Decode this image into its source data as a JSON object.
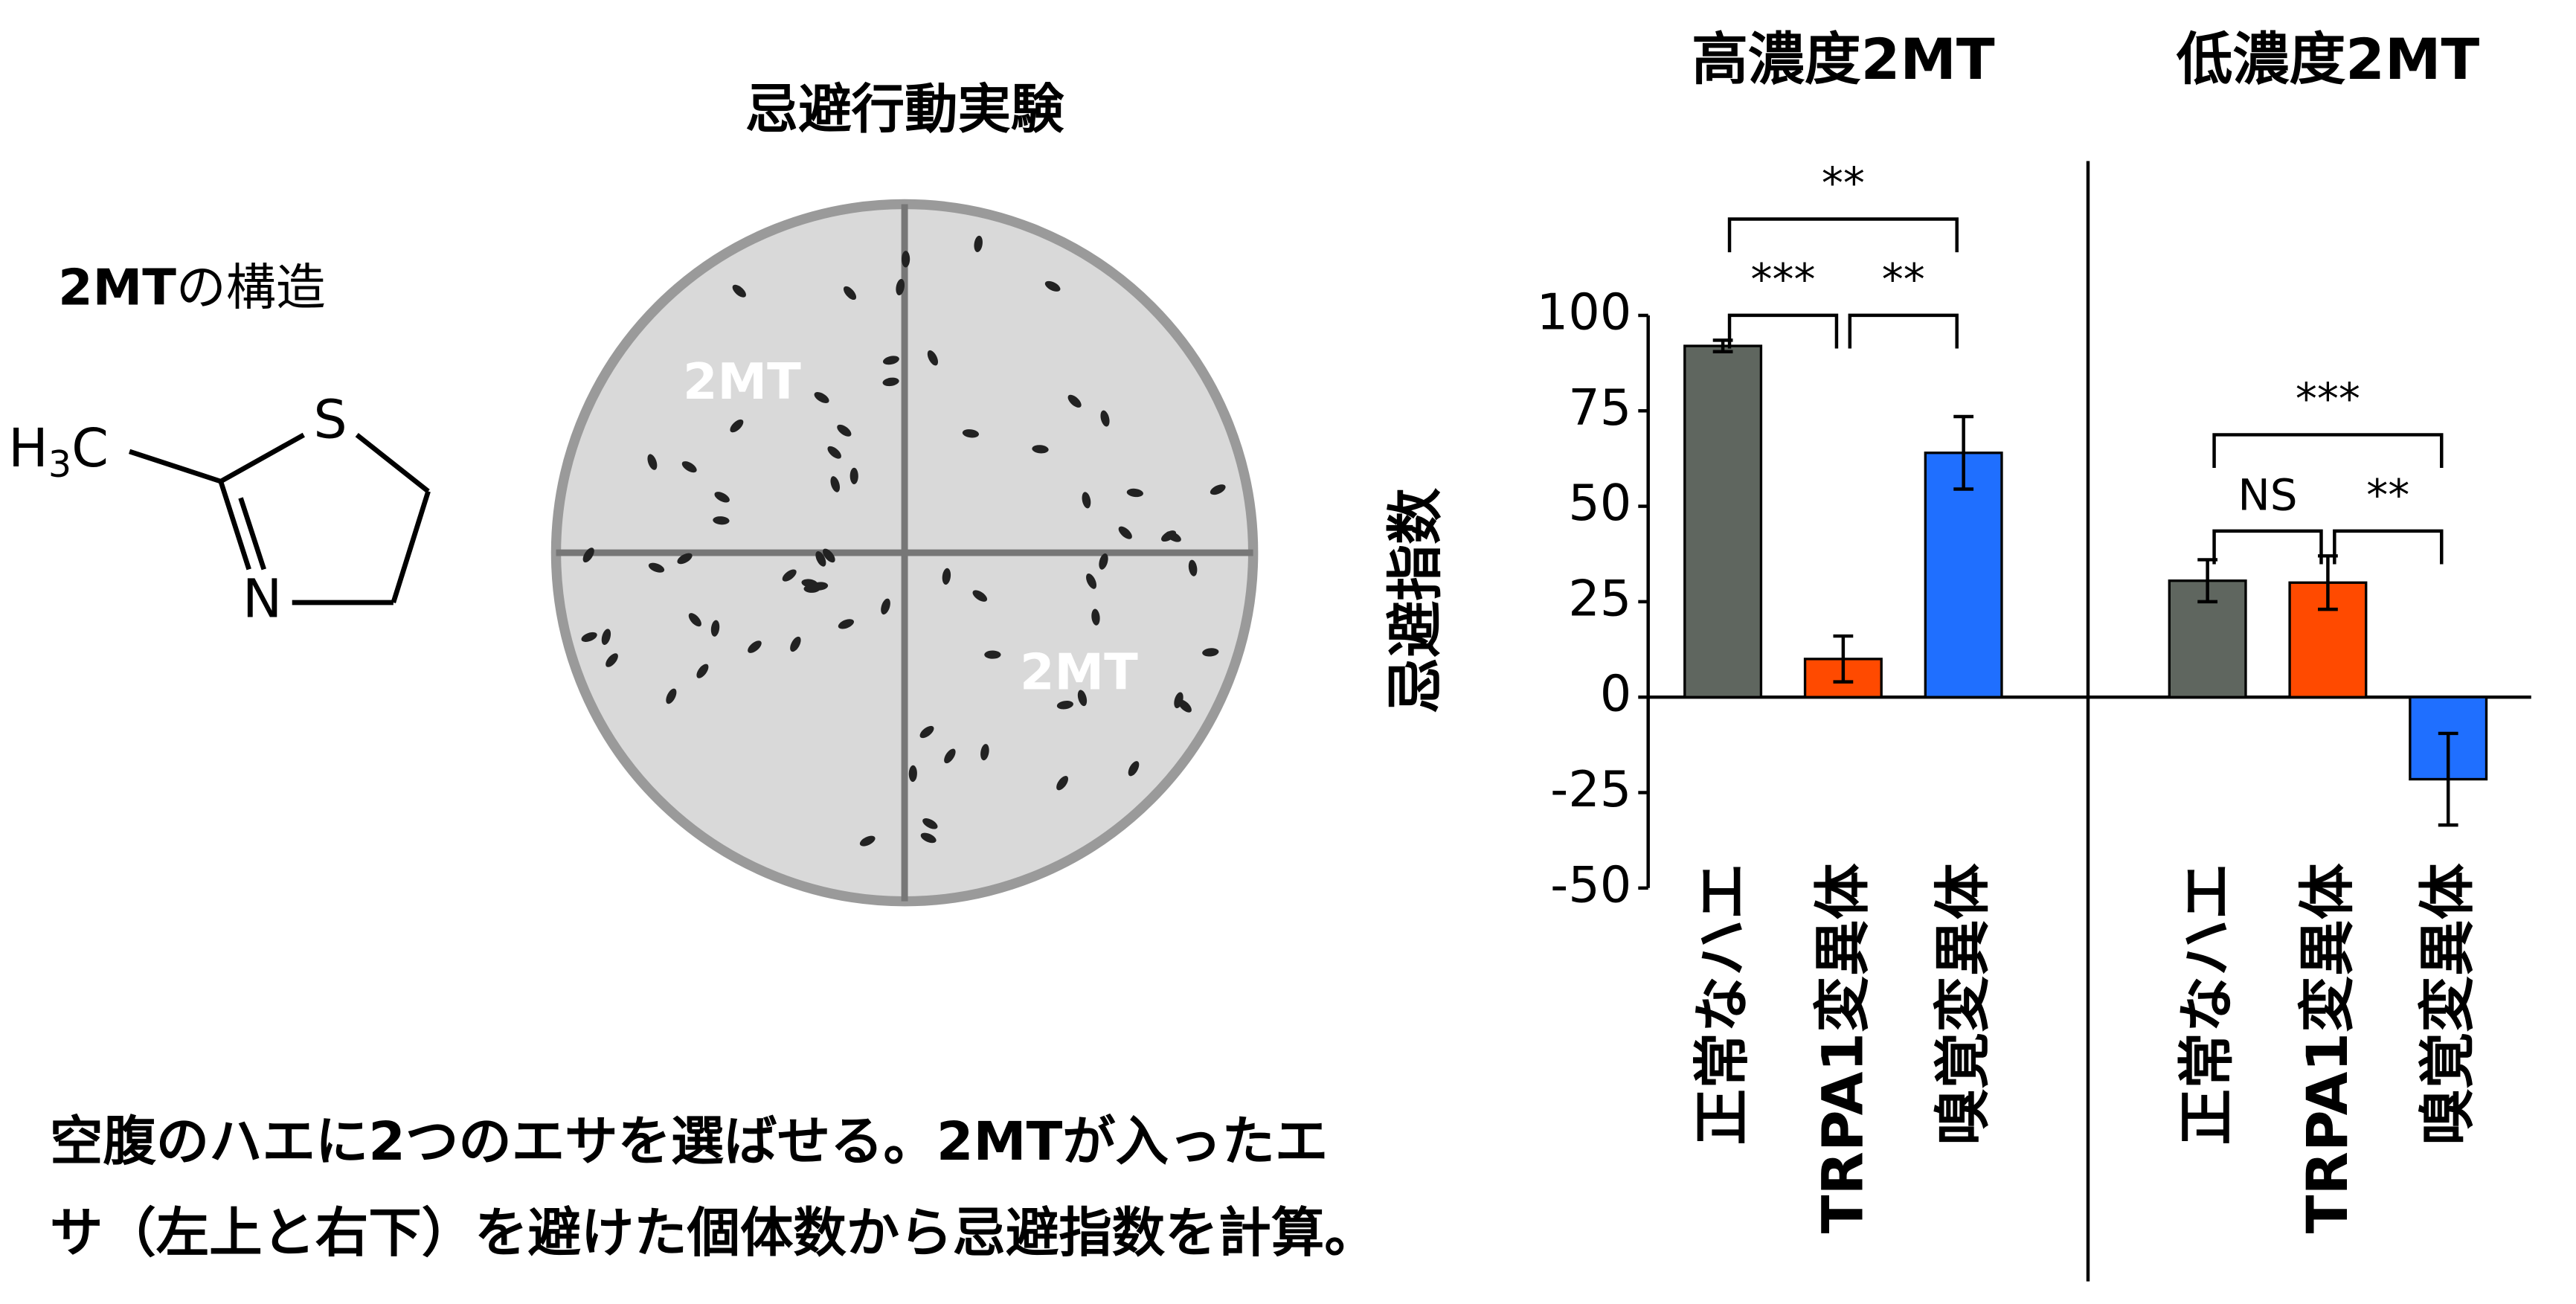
{
  "structure": {
    "title_bold": "2MT",
    "title_rest": "の構造",
    "methyl": [
      "H",
      "3",
      "C"
    ],
    "sulfur": "S",
    "nitrogen": "N"
  },
  "experiment": {
    "title": "忌避行動実験",
    "labels": [
      "2MT",
      "2MT"
    ]
  },
  "caption": [
    "空腹のハエに2つのエサを選ばせる。2MTが入ったエ",
    "サ（左上と右下）を避けた個体数から忌避指数を計算。"
  ],
  "chart_data": [
    {
      "type": "bar",
      "title": "高濃度2MT",
      "y_label": "忌避指数",
      "ylim": [
        -50,
        100
      ],
      "yticks": [
        -50,
        -25,
        0,
        25,
        50,
        75,
        100
      ],
      "categories": [
        "正常なハエ",
        "TRPA1変異体",
        "嗅覚変異体"
      ],
      "values": [
        92,
        10,
        64
      ],
      "errors": [
        1.5,
        6,
        9.5
      ],
      "colors": [
        "#5f665f",
        "#ff4a00",
        "#1f6fff"
      ],
      "annotations": [
        {
          "from": 0,
          "to": 1,
          "label": "***"
        },
        {
          "from": 1,
          "to": 2,
          "label": "**"
        },
        {
          "from": 0,
          "to": 2,
          "label": "**"
        }
      ]
    },
    {
      "type": "bar",
      "title": "低濃度2MT",
      "categories": [
        "正常なハエ",
        "TRPA1変異体",
        "嗅覚変異体"
      ],
      "values": [
        30.5,
        30,
        -21.5
      ],
      "errors": [
        5.5,
        7,
        12
      ],
      "colors": [
        "#5f665f",
        "#ff4a00",
        "#1f6fff"
      ],
      "annotations": [
        {
          "from": 0,
          "to": 1,
          "label": "NS"
        },
        {
          "from": 1,
          "to": 2,
          "label": "**"
        },
        {
          "from": 0,
          "to": 2,
          "label": "***"
        }
      ]
    }
  ]
}
